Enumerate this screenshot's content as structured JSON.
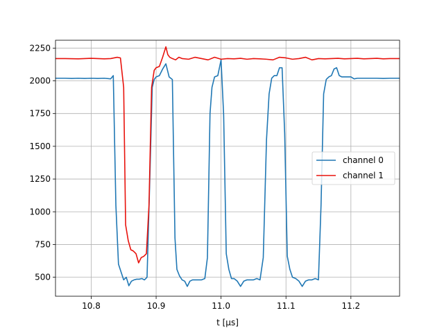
{
  "chart_data": {
    "type": "line",
    "title": "",
    "xlabel": "t [μs]",
    "ylabel": "",
    "xlim": [
      10.745,
      11.275
    ],
    "ylim": [
      355,
      2310
    ],
    "xticks": [
      10.8,
      10.9,
      11.0,
      11.1,
      11.2
    ],
    "xtick_labels": [
      "10.8",
      "10.9",
      "11.0",
      "11.1",
      "11.2"
    ],
    "yticks": [
      500,
      750,
      1000,
      1250,
      1500,
      1750,
      2000,
      2250
    ],
    "ytick_labels": [
      "500",
      "750",
      "1000",
      "1250",
      "1500",
      "1750",
      "2000",
      "2250"
    ],
    "grid": true,
    "legend": {
      "position": "center-right"
    },
    "series": [
      {
        "name": "channel 0",
        "color": "#1f77b4",
        "x": [
          10.745,
          10.75,
          10.76,
          10.77,
          10.78,
          10.79,
          10.8,
          10.81,
          10.82,
          10.83,
          10.834,
          10.838,
          10.842,
          10.846,
          10.85,
          10.854,
          10.858,
          10.862,
          10.866,
          10.87,
          10.874,
          10.878,
          10.882,
          10.886,
          10.89,
          10.894,
          10.897,
          10.9,
          10.905,
          10.91,
          10.915,
          10.92,
          10.925,
          10.929,
          10.932,
          10.936,
          10.94,
          10.944,
          10.948,
          10.952,
          10.956,
          10.96,
          10.965,
          10.97,
          10.975,
          10.979,
          10.983,
          10.986,
          10.99,
          10.995,
          11.0,
          11.004,
          11.008,
          11.012,
          11.016,
          11.02,
          11.025,
          11.03,
          11.035,
          11.04,
          11.045,
          11.05,
          11.055,
          11.06,
          11.065,
          11.07,
          11.074,
          11.078,
          11.082,
          11.086,
          11.09,
          11.094,
          11.098,
          11.102,
          11.106,
          11.11,
          11.115,
          11.12,
          11.125,
          11.13,
          11.135,
          11.14,
          11.145,
          11.15,
          11.154,
          11.158,
          11.162,
          11.166,
          11.17,
          11.174,
          11.178,
          11.182,
          11.186,
          11.19,
          11.2,
          11.205,
          11.21,
          11.22,
          11.23,
          11.24,
          11.25,
          11.26,
          11.275
        ],
        "y": [
          2020,
          2020,
          2020,
          2018,
          2020,
          2018,
          2020,
          2018,
          2020,
          2015,
          2040,
          1050,
          600,
          540,
          480,
          500,
          435,
          470,
          480,
          485,
          485,
          490,
          480,
          500,
          1200,
          1950,
          2010,
          2030,
          2040,
          2090,
          2130,
          2030,
          2010,
          800,
          560,
          510,
          480,
          470,
          430,
          470,
          480,
          480,
          480,
          480,
          490,
          650,
          1750,
          1950,
          2030,
          2040,
          2160,
          1740,
          680,
          560,
          490,
          490,
          470,
          430,
          470,
          480,
          480,
          480,
          490,
          480,
          650,
          1550,
          1900,
          2020,
          2040,
          2040,
          2100,
          2100,
          1600,
          660,
          560,
          500,
          490,
          470,
          430,
          470,
          480,
          480,
          490,
          480,
          1050,
          1900,
          2010,
          2030,
          2040,
          2090,
          2100,
          2040,
          2030,
          2030,
          2030,
          2015,
          2020,
          2020,
          2020,
          2020,
          2018,
          2020,
          2020
        ]
      },
      {
        "name": "channel 1",
        "color": "#e8120c",
        "x": [
          10.745,
          10.76,
          10.78,
          10.8,
          10.82,
          10.83,
          10.84,
          10.845,
          10.85,
          10.853,
          10.857,
          10.861,
          10.865,
          10.869,
          10.873,
          10.877,
          10.881,
          10.885,
          10.889,
          10.893,
          10.897,
          10.9,
          10.905,
          10.91,
          10.915,
          10.918,
          10.921,
          10.925,
          10.93,
          10.935,
          10.94,
          10.95,
          10.96,
          10.97,
          10.98,
          10.99,
          11.0,
          11.01,
          11.02,
          11.03,
          11.04,
          11.05,
          11.06,
          11.07,
          11.08,
          11.09,
          11.1,
          11.11,
          11.12,
          11.13,
          11.14,
          11.15,
          11.16,
          11.17,
          11.18,
          11.19,
          11.2,
          11.21,
          11.22,
          11.23,
          11.24,
          11.25,
          11.26,
          11.275
        ],
        "y": [
          2170,
          2170,
          2168,
          2172,
          2168,
          2170,
          2180,
          2175,
          1950,
          900,
          780,
          710,
          700,
          680,
          610,
          650,
          660,
          680,
          1050,
          1950,
          2080,
          2100,
          2110,
          2180,
          2260,
          2200,
          2180,
          2170,
          2160,
          2180,
          2170,
          2165,
          2180,
          2170,
          2160,
          2180,
          2165,
          2170,
          2168,
          2172,
          2165,
          2170,
          2168,
          2165,
          2160,
          2180,
          2175,
          2165,
          2170,
          2180,
          2160,
          2170,
          2168,
          2170,
          2172,
          2168,
          2170,
          2172,
          2168,
          2170,
          2172,
          2168,
          2170,
          2170
        ]
      }
    ]
  }
}
